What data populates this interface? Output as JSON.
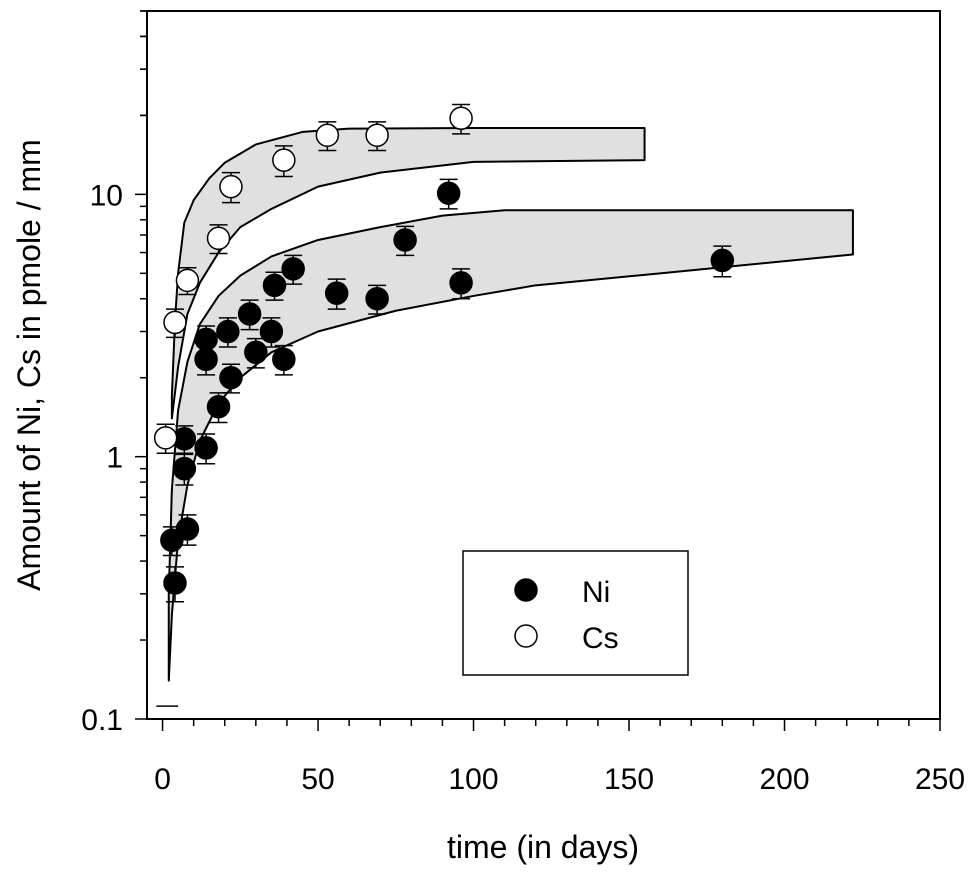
{
  "chart_data": {
    "type": "scatter",
    "xlabel": "time (in days)",
    "ylabel": "Amount of Ni, Cs in pmole / mm",
    "xlim": [
      -5,
      250
    ],
    "ylim": [
      0.1,
      50
    ],
    "y_scale": "log",
    "grid": false,
    "legend_position": "bottom-right",
    "x_ticks": [
      0,
      50,
      100,
      150,
      200,
      250
    ],
    "x_tick_labels": [
      "0",
      "50",
      "100",
      "150",
      "200",
      "250"
    ],
    "y_ticks": [
      0.1,
      1,
      10
    ],
    "y_tick_labels": [
      "0.1",
      "1",
      "10"
    ],
    "legend": [
      {
        "label": "Ni",
        "marker": "filled-circle"
      },
      {
        "label": "Cs",
        "marker": "open-circle"
      }
    ],
    "series": [
      {
        "name": "Ni",
        "marker": "filled",
        "points": [
          {
            "x": 3,
            "y": 0.48,
            "err": 0.06
          },
          {
            "x": 4,
            "y": 0.33,
            "err": 0.05
          },
          {
            "x": 7,
            "y": 1.17,
            "err": 0.14
          },
          {
            "x": 7,
            "y": 0.9,
            "err": 0.12
          },
          {
            "x": 8,
            "y": 0.53,
            "err": 0.07
          },
          {
            "x": 14,
            "y": 2.8,
            "err": 0.35
          },
          {
            "x": 14,
            "y": 2.35,
            "err": 0.3
          },
          {
            "x": 14,
            "y": 1.08,
            "err": 0.14
          },
          {
            "x": 18,
            "y": 1.55,
            "err": 0.2
          },
          {
            "x": 21,
            "y": 3.0,
            "err": 0.38
          },
          {
            "x": 22,
            "y": 2.0,
            "err": 0.25
          },
          {
            "x": 28,
            "y": 3.5,
            "err": 0.45
          },
          {
            "x": 30,
            "y": 2.5,
            "err": 0.32
          },
          {
            "x": 35,
            "y": 3.0,
            "err": 0.38
          },
          {
            "x": 36,
            "y": 4.5,
            "err": 0.55
          },
          {
            "x": 39,
            "y": 2.35,
            "err": 0.3
          },
          {
            "x": 42,
            "y": 5.2,
            "err": 0.65
          },
          {
            "x": 56,
            "y": 4.2,
            "err": 0.55
          },
          {
            "x": 69,
            "y": 4.0,
            "err": 0.5
          },
          {
            "x": 78,
            "y": 6.7,
            "err": 0.85
          },
          {
            "x": 92,
            "y": 10.1,
            "err": 1.3
          },
          {
            "x": 96,
            "y": 4.6,
            "err": 0.6
          },
          {
            "x": 180,
            "y": 5.6,
            "err": 0.75
          }
        ]
      },
      {
        "name": "Cs",
        "marker": "open",
        "points": [
          {
            "x": 1,
            "y": 1.18,
            "err": 0.15
          },
          {
            "x": 4,
            "y": 3.25,
            "err": 0.4
          },
          {
            "x": 8,
            "y": 4.7,
            "err": 0.55
          },
          {
            "x": 18,
            "y": 6.8,
            "err": 0.85
          },
          {
            "x": 22,
            "y": 10.7,
            "err": 1.4
          },
          {
            "x": 39,
            "y": 13.5,
            "err": 1.8
          },
          {
            "x": 53,
            "y": 16.8,
            "err": 2.1
          },
          {
            "x": 69,
            "y": 16.8,
            "err": 2.1
          },
          {
            "x": 96,
            "y": 19.5,
            "err": 2.5
          }
        ]
      }
    ],
    "bands": [
      {
        "name": "Cs band",
        "upper": [
          [
            3,
            1.7
          ],
          [
            4,
            3.3
          ],
          [
            5,
            5.0
          ],
          [
            7,
            7.8
          ],
          [
            10,
            9.5
          ],
          [
            15,
            11.5
          ],
          [
            20,
            13.2
          ],
          [
            30,
            15.5
          ],
          [
            45,
            17.3
          ],
          [
            60,
            17.8
          ],
          [
            100,
            17.9
          ],
          [
            155,
            17.9
          ]
        ],
        "lower": [
          [
            3,
            1.4
          ],
          [
            5,
            2.2
          ],
          [
            8,
            3.5
          ],
          [
            12,
            4.6
          ],
          [
            18,
            6.0
          ],
          [
            25,
            7.5
          ],
          [
            35,
            8.8
          ],
          [
            50,
            10.7
          ],
          [
            70,
            12.1
          ],
          [
            100,
            13.3
          ],
          [
            155,
            13.5
          ]
        ]
      },
      {
        "name": "Ni band",
        "upper": [
          [
            2,
            0.3
          ],
          [
            3,
            0.75
          ],
          [
            5,
            1.5
          ],
          [
            8,
            2.3
          ],
          [
            12,
            3.2
          ],
          [
            18,
            4.1
          ],
          [
            25,
            4.9
          ],
          [
            35,
            5.8
          ],
          [
            50,
            6.7
          ],
          [
            70,
            7.5
          ],
          [
            90,
            8.3
          ],
          [
            110,
            8.7
          ],
          [
            160,
            8.7
          ],
          [
            222,
            8.7
          ]
        ],
        "lower": [
          [
            2,
            0.14
          ],
          [
            3,
            0.25
          ],
          [
            5,
            0.48
          ],
          [
            8,
            0.78
          ],
          [
            12,
            1.15
          ],
          [
            18,
            1.6
          ],
          [
            25,
            2.0
          ],
          [
            35,
            2.5
          ],
          [
            50,
            3.0
          ],
          [
            75,
            3.6
          ],
          [
            100,
            4.1
          ],
          [
            120,
            4.5
          ],
          [
            160,
            5.0
          ],
          [
            222,
            5.9
          ]
        ]
      }
    ]
  }
}
